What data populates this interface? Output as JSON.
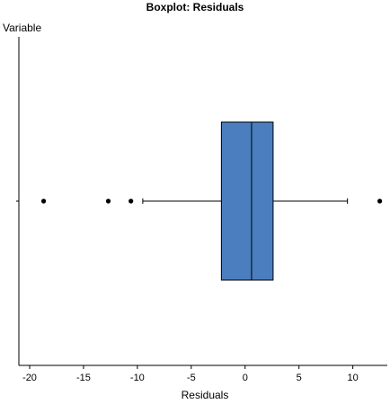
{
  "chart_data": {
    "type": "boxplot",
    "title": "Boxplot: Residuals",
    "ylabel": "Variable",
    "xlabel": "Residuals",
    "orientation": "horizontal",
    "xlim": [
      -21,
      13.2
    ],
    "ticks": [
      -20,
      -15,
      -10,
      -5,
      0,
      5,
      10
    ],
    "tick_labels": [
      "-20",
      "-15",
      "-10",
      "-5",
      "0",
      "5",
      "10"
    ],
    "box": {
      "whisker_low": -9.5,
      "q1": -2.2,
      "median": 0.6,
      "q3": 2.6,
      "whisker_high": 9.5
    },
    "outliers": [
      -18.7,
      -12.7,
      -10.6,
      12.5
    ],
    "box_color": "#4a7ebf",
    "grid": false,
    "legend": "none"
  }
}
